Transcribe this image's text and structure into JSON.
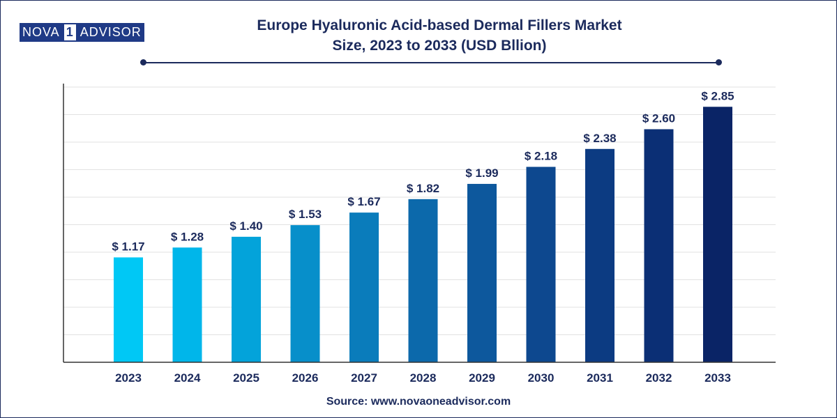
{
  "logo": {
    "left": "NOVA",
    "mid": "1",
    "right": "ADVISOR"
  },
  "chart_data": {
    "type": "bar",
    "title": "Europe Hyaluronic Acid-based Dermal Fillers Market",
    "subtitle": "Size, 2023 to 2033 (USD Bllion)",
    "categories": [
      "2023",
      "2024",
      "2025",
      "2026",
      "2027",
      "2028",
      "2029",
      "2030",
      "2031",
      "2032",
      "2033"
    ],
    "values": [
      1.17,
      1.28,
      1.4,
      1.53,
      1.67,
      1.82,
      1.99,
      2.18,
      2.38,
      2.6,
      2.85
    ],
    "value_labels": [
      "$ 1.17",
      "$ 1.28",
      "$ 1.40",
      "$ 1.53",
      "$ 1.67",
      "$ 1.82",
      "$ 1.99",
      "$ 2.18",
      "$ 2.38",
      "$ 2.60",
      "$ 2.85"
    ],
    "bar_colors": [
      "#00c8f5",
      "#00b6ea",
      "#03a3da",
      "#078fca",
      "#0a7cbb",
      "#0c69ab",
      "#0d589d",
      "#0d488f",
      "#0c3b82",
      "#0b2f75",
      "#0a2466"
    ],
    "ylim": [
      0,
      3.07
    ],
    "grid": true,
    "xlabel": "",
    "ylabel": ""
  },
  "footer": {
    "source": "Source: www.novaoneadvisor.com"
  },
  "colors": {
    "title": "#1b2a5c",
    "grid": "#e2e2e2",
    "axis": "#333333"
  }
}
